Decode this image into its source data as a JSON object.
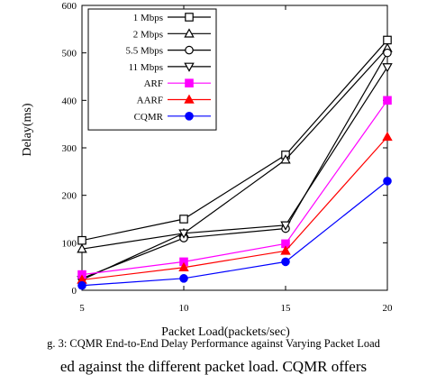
{
  "chart_data": {
    "type": "line",
    "title": "",
    "xlabel": "Packet Load(packets/sec)",
    "ylabel": "Delay(ms)",
    "x": [
      5,
      10,
      15,
      20
    ],
    "xlim": [
      5,
      20
    ],
    "ylim": [
      0,
      600
    ],
    "xticks": [
      "5",
      "10",
      "15",
      "20"
    ],
    "yticks": [
      "0",
      "100",
      "200",
      "300",
      "400",
      "500",
      "600"
    ],
    "grid": false,
    "legend_position": "top-left",
    "series": [
      {
        "name": "1 Mbps",
        "values": [
          105,
          150,
          285,
          527
        ],
        "color": "#000000",
        "marker": "square-open"
      },
      {
        "name": "2 Mbps",
        "values": [
          87,
          120,
          275,
          510
        ],
        "color": "#000000",
        "marker": "triangle-up-open"
      },
      {
        "name": "5.5 Mbps",
        "values": [
          25,
          110,
          130,
          500
        ],
        "color": "#000000",
        "marker": "circle-open"
      },
      {
        "name": "11 Mbps",
        "values": [
          22,
          120,
          137,
          470
        ],
        "color": "#000000",
        "marker": "triangle-down-open"
      },
      {
        "name": "ARF",
        "values": [
          33,
          60,
          98,
          400
        ],
        "color": "#ff00ff",
        "marker": "square-filled"
      },
      {
        "name": "AARF",
        "values": [
          22,
          48,
          83,
          323
        ],
        "color": "#ff0000",
        "marker": "triangle-up-filled"
      },
      {
        "name": "CQMR",
        "values": [
          10,
          25,
          60,
          230
        ],
        "color": "#0000ff",
        "marker": "circle-filled"
      }
    ]
  },
  "caption": "g. 3: CQMR End-to-End Delay Performance against Varying Packet Load",
  "body_text": "ed against the different packet load. CQMR offers"
}
